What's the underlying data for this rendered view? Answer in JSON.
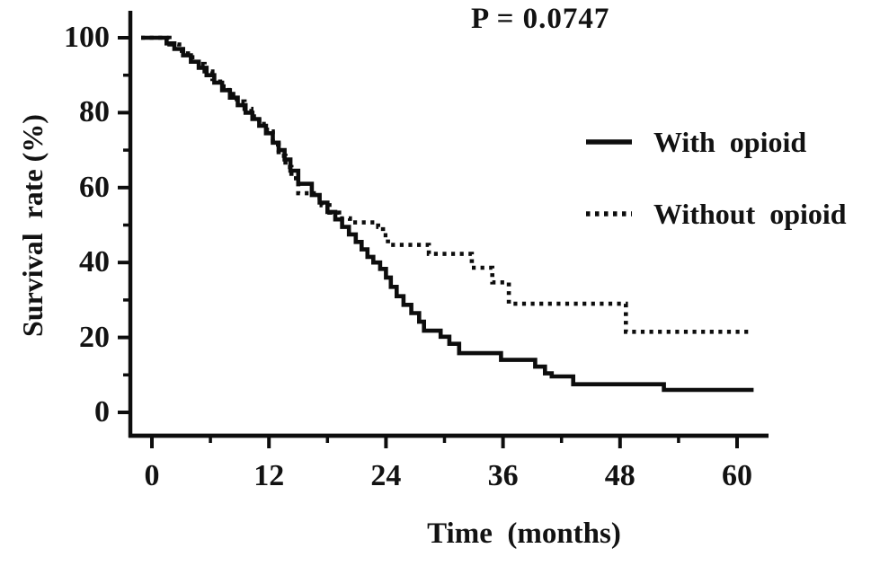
{
  "figure": {
    "p_value_label": "P = 0.0747",
    "x_axis_title": "Time  (months)",
    "y_axis_title": "Survival  rate (%)"
  },
  "legend": {
    "items": [
      {
        "label": "With  opioid",
        "style": "solid"
      },
      {
        "label": "Without  opioid",
        "style": "dotted"
      }
    ]
  },
  "chart_data": {
    "type": "line",
    "subtype": "kaplan-meier-step-curves",
    "title": "",
    "annotation": "P = 0.0747",
    "xlabel": "Time (months)",
    "ylabel": "Survival rate (%)",
    "xlim": [
      0,
      63
    ],
    "ylim": [
      0,
      100
    ],
    "x_ticks_major": [
      0,
      12,
      24,
      36,
      48,
      60
    ],
    "x_ticks_minor": [
      6,
      18,
      30,
      42,
      54
    ],
    "y_ticks_major": [
      0,
      20,
      40,
      60,
      80,
      100
    ],
    "y_ticks_minor": [
      10,
      30,
      50,
      70,
      90
    ],
    "grid": false,
    "legend_position": "right-middle",
    "line_color": "#0d0d0d",
    "series": [
      {
        "name": "With opioid",
        "style": "solid",
        "points": [
          [
            0,
            100
          ],
          [
            1.5,
            98.5
          ],
          [
            2.3,
            97
          ],
          [
            3.2,
            95.3
          ],
          [
            4,
            93.6
          ],
          [
            4.8,
            92
          ],
          [
            5.6,
            90
          ],
          [
            6.4,
            88
          ],
          [
            7.2,
            86
          ],
          [
            8,
            84
          ],
          [
            8.8,
            82
          ],
          [
            9.6,
            80
          ],
          [
            10.3,
            78.3
          ],
          [
            11,
            76.5
          ],
          [
            11.7,
            74.5
          ],
          [
            12.4,
            72
          ],
          [
            13,
            70
          ],
          [
            13.6,
            67.5
          ],
          [
            14.2,
            64.5
          ],
          [
            15,
            61
          ],
          [
            16.4,
            58
          ],
          [
            17.2,
            56
          ],
          [
            18,
            53.5
          ],
          [
            18.8,
            51.5
          ],
          [
            19.5,
            49.5
          ],
          [
            20.2,
            47.5
          ],
          [
            20.9,
            45.5
          ],
          [
            21.5,
            43.5
          ],
          [
            22.1,
            41.5
          ],
          [
            22.7,
            40
          ],
          [
            23.4,
            38.3
          ],
          [
            24,
            36
          ],
          [
            24.5,
            33.5
          ],
          [
            25.1,
            31
          ],
          [
            25.8,
            28.7
          ],
          [
            26.6,
            26.5
          ],
          [
            27.4,
            24.2
          ],
          [
            27.9,
            21.8
          ],
          [
            29.6,
            20.2
          ],
          [
            30.5,
            18.3
          ],
          [
            31.5,
            15.8
          ],
          [
            35.8,
            14
          ],
          [
            39.3,
            12.2
          ],
          [
            40.3,
            10.4
          ],
          [
            41,
            9.6
          ],
          [
            43.2,
            7.5
          ],
          [
            52.5,
            6
          ],
          [
            61.7,
            6
          ]
        ]
      },
      {
        "name": "Without opioid",
        "style": "dotted",
        "points": [
          [
            0,
            100
          ],
          [
            1.8,
            98.2
          ],
          [
            2.8,
            96.5
          ],
          [
            3.7,
            94.8
          ],
          [
            4.6,
            93
          ],
          [
            5.4,
            91
          ],
          [
            6.2,
            89
          ],
          [
            7,
            87
          ],
          [
            7.9,
            85
          ],
          [
            8.7,
            83
          ],
          [
            9.5,
            81
          ],
          [
            10.2,
            79
          ],
          [
            11,
            77
          ],
          [
            11.8,
            75
          ],
          [
            12.4,
            71.5
          ],
          [
            13,
            68.5
          ],
          [
            13.7,
            65.5
          ],
          [
            14.3,
            62.5
          ],
          [
            15,
            58.5
          ],
          [
            16.6,
            57.3
          ],
          [
            17.4,
            55.3
          ],
          [
            18.2,
            53.3
          ],
          [
            19.2,
            51.8
          ],
          [
            20.3,
            50.7
          ],
          [
            23.2,
            49.5
          ],
          [
            23.7,
            47.3
          ],
          [
            24.2,
            44.7
          ],
          [
            28.4,
            42.3
          ],
          [
            32.8,
            38.6
          ],
          [
            34.9,
            34.7
          ],
          [
            36.6,
            29
          ],
          [
            48.6,
            21.5
          ],
          [
            61.5,
            21.5
          ]
        ]
      }
    ]
  }
}
